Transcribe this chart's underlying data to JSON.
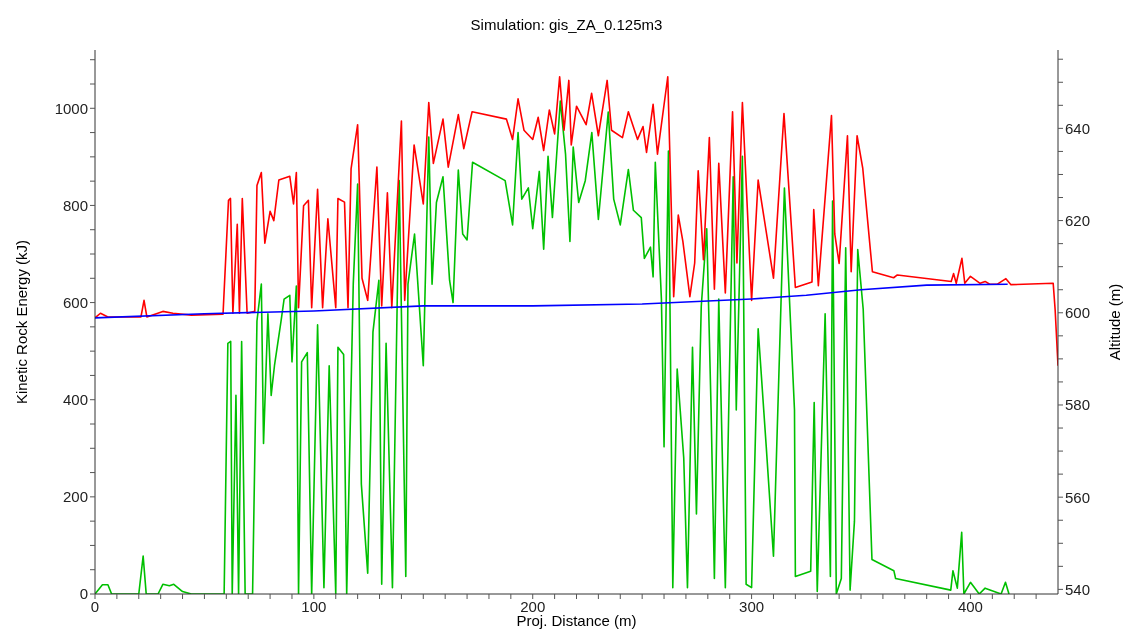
{
  "chart_data": {
    "type": "line",
    "title": "Simulation: gis_ZA_0.125m3",
    "xlabel": "Proj. Distance (m)",
    "ylabel": "Kinetic Rock Energy (kJ)",
    "y2label": "Altitude (m)",
    "xlim": [
      0,
      440
    ],
    "xticks": [
      0,
      {
        "value": 10,
        "label": null
      },
      {
        "value": 20,
        "label": null
      },
      {
        "value": 30,
        "label": null
      },
      {
        "value": 40,
        "label": null
      },
      {
        "value": 50,
        "label": null
      },
      {
        "value": 60,
        "label": null
      },
      {
        "value": 70,
        "label": null
      },
      {
        "value": 80,
        "label": null
      },
      {
        "value": 90,
        "label": null
      },
      100,
      {
        "value": 110,
        "label": null
      },
      {
        "value": 120,
        "label": null
      },
      {
        "value": 130,
        "label": null
      },
      {
        "value": 140,
        "label": null
      },
      {
        "value": 150,
        "label": null
      },
      {
        "value": 160,
        "label": null
      },
      {
        "value": 170,
        "label": null
      },
      {
        "value": 180,
        "label": null
      },
      {
        "value": 190,
        "label": null
      },
      200,
      {
        "value": 210,
        "label": null
      },
      {
        "value": 220,
        "label": null
      },
      {
        "value": 230,
        "label": null
      },
      {
        "value": 240,
        "label": null
      },
      {
        "value": 250,
        "label": null
      },
      {
        "value": 260,
        "label": null
      },
      {
        "value": 270,
        "label": null
      },
      {
        "value": 280,
        "label": null
      },
      {
        "value": 290,
        "label": null
      },
      300,
      {
        "value": 310,
        "label": null
      },
      {
        "value": 320,
        "label": null
      },
      {
        "value": 330,
        "label": null
      },
      {
        "value": 340,
        "label": null
      },
      {
        "value": 350,
        "label": null
      },
      {
        "value": 360,
        "label": null
      },
      {
        "value": 370,
        "label": null
      },
      {
        "value": 380,
        "label": null
      },
      {
        "value": 390,
        "label": null
      },
      400,
      {
        "value": 410,
        "label": null
      },
      {
        "value": 420,
        "label": null
      },
      {
        "value": 430,
        "label": null
      }
    ],
    "ylim": [
      0,
      1120
    ],
    "yticks": [
      0,
      {
        "value": 50,
        "label": null
      },
      {
        "value": 100,
        "label": null
      },
      {
        "value": 150,
        "label": null
      },
      200,
      {
        "value": 250,
        "label": null
      },
      {
        "value": 300,
        "label": null
      },
      {
        "value": 350,
        "label": null
      },
      400,
      {
        "value": 450,
        "label": null
      },
      {
        "value": 500,
        "label": null
      },
      {
        "value": 550,
        "label": null
      },
      600,
      {
        "value": 650,
        "label": null
      },
      {
        "value": 700,
        "label": null
      },
      {
        "value": 750,
        "label": null
      },
      800,
      {
        "value": 850,
        "label": null
      },
      {
        "value": 900,
        "label": null
      },
      {
        "value": 950,
        "label": null
      },
      1000,
      {
        "value": 1050,
        "label": null
      },
      {
        "value": 1100,
        "label": null
      }
    ],
    "y2lim": [
      539,
      657
    ],
    "y2ticks": [
      540,
      {
        "value": 545,
        "label": null
      },
      {
        "value": 550,
        "label": null
      },
      {
        "value": 555,
        "label": null
      },
      560,
      {
        "value": 565,
        "label": null
      },
      {
        "value": 570,
        "label": null
      },
      {
        "value": 575,
        "label": null
      },
      580,
      {
        "value": 585,
        "label": null
      },
      {
        "value": 590,
        "label": null
      },
      {
        "value": 595,
        "label": null
      },
      600,
      {
        "value": 605,
        "label": null
      },
      {
        "value": 610,
        "label": null
      },
      {
        "value": 615,
        "label": null
      },
      620,
      {
        "value": 625,
        "label": null
      },
      {
        "value": 630,
        "label": null
      },
      {
        "value": 635,
        "label": null
      },
      640,
      {
        "value": 645,
        "label": null
      },
      {
        "value": 650,
        "label": null
      },
      {
        "value": 655,
        "label": null
      }
    ],
    "grid": false,
    "marker": "none",
    "line_style": "solid",
    "series": [
      {
        "color": "#00c000",
        "x": [
          0,
          3.4,
          5.9,
          7.6,
          20,
          22,
          23.4,
          28.8,
          31,
          34,
          36,
          40,
          44,
          59,
          60.7,
          62,
          62.7,
          64.4,
          65.6,
          67,
          68.6,
          72,
          74,
          76,
          77,
          79,
          80.5,
          82,
          85,
          86.4,
          89,
          90,
          92,
          93,
          94.4,
          97,
          99,
          101.7,
          104.6,
          107,
          110,
          111,
          113.6,
          115,
          118,
          120,
          121.7,
          124.6,
          127,
          129.7,
          131,
          133,
          135.9,
          139,
          142,
          143,
          146,
          150,
          152.5,
          154,
          156,
          159,
          162,
          163.6,
          166,
          168,
          170,
          172.5,
          187.4,
          190.8,
          193.3,
          195,
          198,
          200,
          203,
          205,
          207,
          209,
          212.6,
          215,
          217,
          218.5,
          221,
          224,
          227,
          230,
          234.5,
          237,
          240,
          243.7,
          246,
          249.6,
          251,
          253.8,
          255,
          256,
          258.8,
          260,
          262,
          264,
          266,
          269,
          270.7,
          273,
          274.8,
          277,
          279.5,
          281.5,
          283,
          285,
          288,
          291.6,
          293,
          295.8,
          297.5,
          300,
          303,
          306.7,
          310,
          315,
          319.6,
          320,
          327,
          328.6,
          330,
          333.6,
          336,
          337,
          338.7,
          341,
          343,
          345,
          347,
          348.5,
          351,
          355,
          365,
          365.8,
          391,
          392,
          394,
          396,
          397,
          400,
          404,
          406.7,
          414,
          416,
          417.6
        ],
        "values": [
          0,
          19,
          19,
          0,
          0,
          78,
          0,
          0,
          20,
          17,
          20,
          5,
          0,
          0,
          516,
          520,
          0,
          409,
          0,
          520,
          0,
          0,
          562,
          638,
          310,
          577,
          409,
          470,
          562,
          607,
          615,
          478,
          634,
          0,
          478,
          497,
          0,
          554,
          13,
          470,
          0,
          508,
          493,
          0,
          638,
          844,
          226,
          43,
          539,
          646,
          20,
          516,
          13,
          851,
          36,
          638,
          741,
          470,
          941,
          638,
          806,
          859,
          646,
          600,
          873,
          741,
          729,
          889,
          851,
          760,
          950,
          813,
          836,
          752,
          870,
          710,
          901,
          775,
          1015,
          905,
          726,
          920,
          806,
          851,
          950,
          771,
          992,
          813,
          760,
          874,
          790,
          775,
          691,
          714,
          653,
          889,
          607,
          303,
          912,
          13,
          463,
          280,
          13,
          508,
          165,
          592,
          752,
          379,
          32,
          607,
          13,
          859,
          379,
          901,
          20,
          13,
          546,
          303,
          78,
          836,
          379,
          36,
          47,
          394,
          5,
          577,
          36,
          809,
          0,
          32,
          713,
          8,
          150,
          709,
          586,
          71,
          48,
          32,
          8,
          48,
          12,
          127,
          0,
          24,
          0,
          12,
          0,
          24,
          0
        ],
        "axis": "y"
      },
      {
        "color": "#ff0000",
        "x": [
          0,
          2.5,
          5.9,
          21,
          22.4,
          23.7,
          31,
          35.6,
          44,
          58.5,
          61,
          61.9,
          63,
          65,
          66,
          67.3,
          69.5,
          73,
          74,
          76,
          77.6,
          80,
          81.7,
          84,
          89,
          90.7,
          92,
          93,
          95.3,
          97.5,
          99,
          101.7,
          104,
          106.4,
          110,
          111,
          114,
          115.6,
          117,
          120,
          122,
          124.6,
          128.8,
          131,
          133.6,
          135.6,
          140,
          141.5,
          145.8,
          150,
          152.5,
          154.6,
          159,
          161.4,
          166,
          168.5,
          172.3,
          188,
          190.8,
          193.3,
          196,
          200,
          202.5,
          205,
          207.6,
          210,
          212.3,
          214.3,
          216.5,
          217.6,
          220,
          224.4,
          226.9,
          230,
          234,
          236,
          241,
          243.7,
          247.9,
          250.4,
          252,
          255,
          257,
          261.7,
          264.4,
          266.5,
          268.6,
          271.8,
          274,
          275.6,
          278,
          280.7,
          283,
          285,
          288,
          291.3,
          293.3,
          295.8,
          300,
          303,
          310,
          314.8,
          320,
          327.6,
          328.4,
          330.5,
          336.5,
          338,
          340,
          343.8,
          345.5,
          348.2,
          350.8,
          355.2,
          364.9,
          366.6,
          391.2,
          392.3,
          393.5,
          396.1,
          397.4,
          400,
          404.4,
          406.7,
          408.8,
          412.3,
          416.2,
          418.5,
          437.8,
          438.7,
          440
        ],
        "values": [
          598.9,
          599.9,
          599.1,
          599.1,
          602.7,
          599.1,
          600.3,
          599.9,
          599.5,
          599.7,
          624.4,
          624.8,
          599.9,
          619.2,
          599.9,
          624.8,
          599.9,
          600.3,
          627.6,
          630.4,
          615.1,
          622,
          620,
          628.8,
          629.6,
          623.6,
          630.4,
          601.1,
          623.2,
          624.4,
          601.1,
          626.8,
          601.1,
          620.4,
          601.1,
          624.8,
          624,
          601.1,
          631.2,
          640.8,
          607.5,
          602.7,
          631.6,
          601.5,
          626,
          601.1,
          641.6,
          602.7,
          636.4,
          623.6,
          645.6,
          632.4,
          642,
          631.6,
          643,
          635.6,
          643.6,
          642,
          637.6,
          646.4,
          639.6,
          637.6,
          642.4,
          635.2,
          644,
          638.8,
          651.2,
          639.6,
          650.4,
          636.4,
          644.8,
          640.8,
          647.6,
          638.4,
          650.4,
          639.6,
          638,
          643.6,
          637.6,
          640.4,
          634.8,
          645.2,
          634.4,
          651.2,
          603.5,
          621.2,
          615.5,
          603.5,
          610.8,
          630.8,
          611.5,
          638,
          605.1,
          632.4,
          604.3,
          643.6,
          610.8,
          645.6,
          602.7,
          628.8,
          607.5,
          643.2,
          605.5,
          606.7,
          622.4,
          605.9,
          642.8,
          617.1,
          610.7,
          638.4,
          608.9,
          638.4,
          631.3,
          608.9,
          607.6,
          608.2,
          606.8,
          608.5,
          606.4,
          611.8,
          606.4,
          607.9,
          606.4,
          606.8,
          606.2,
          606.2,
          607.4,
          606.1,
          606.4,
          600.6,
          588.5
        ],
        "axis": "y2"
      },
      {
        "color": "#0000ff",
        "x": [
          0,
          50,
          100,
          150,
          200,
          250,
          300,
          325,
          350,
          380,
          417
        ],
        "values": [
          598.9,
          599.8,
          600.4,
          601.5,
          601.5,
          601.9,
          603,
          603.8,
          605,
          606,
          606.2
        ],
        "axis": "y2"
      }
    ]
  }
}
